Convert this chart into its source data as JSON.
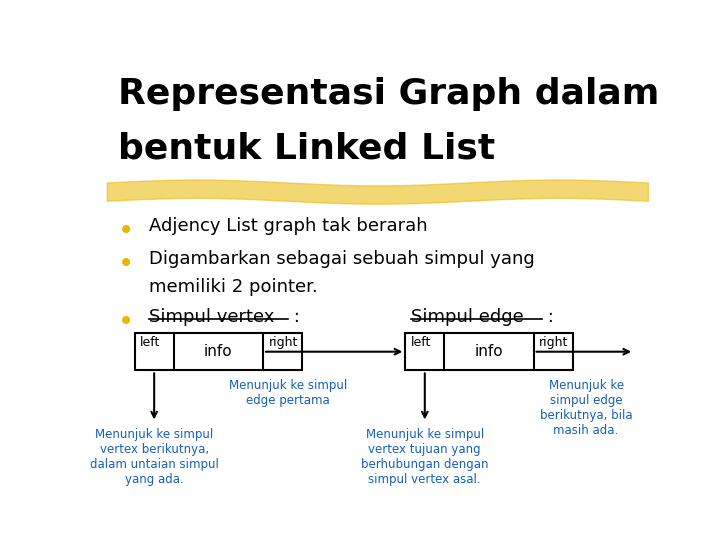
{
  "title_line1": "Representasi Graph dalam",
  "title_line2": "bentuk Linked List",
  "title_fontsize": 26,
  "title_color": "#000000",
  "highlight_color": "#E8B800",
  "highlight_alpha": 0.55,
  "background_color": "#ffffff",
  "bullet_color": "#E8B800",
  "bullet_text_color": "#000000",
  "bullet1": "Adjency List graph tak berarah",
  "bullet2_line1": "Digambarkan sebagai sebuah simpul yang",
  "bullet2_line2": "memiliki 2 pointer.",
  "blue_text_color": "#1560BD",
  "vertex_label_left": "left",
  "vertex_label_info": "info",
  "vertex_label_right": "right",
  "edge_label_left": "left",
  "edge_label_info": "info",
  "edge_label_right": "right",
  "simpul_vertex_text": "Simpul vertex",
  "simpul_edge_text": "Simpul edge",
  "colon": " :",
  "ann1": "Menunjuk ke simpul\nvertex berikutnya,\ndalam untaian simpul\nyang ada.",
  "ann2": "Menunjuk ke simpul\nedge pertama",
  "ann3": "Menunjuk ke simpul\nvertex tujuan yang\nberhubungan dengan\nsimpul vertex asal.",
  "ann4": "Menunjuk ke\nsimpul edge\nberikutnya, bila\nmasih ada."
}
